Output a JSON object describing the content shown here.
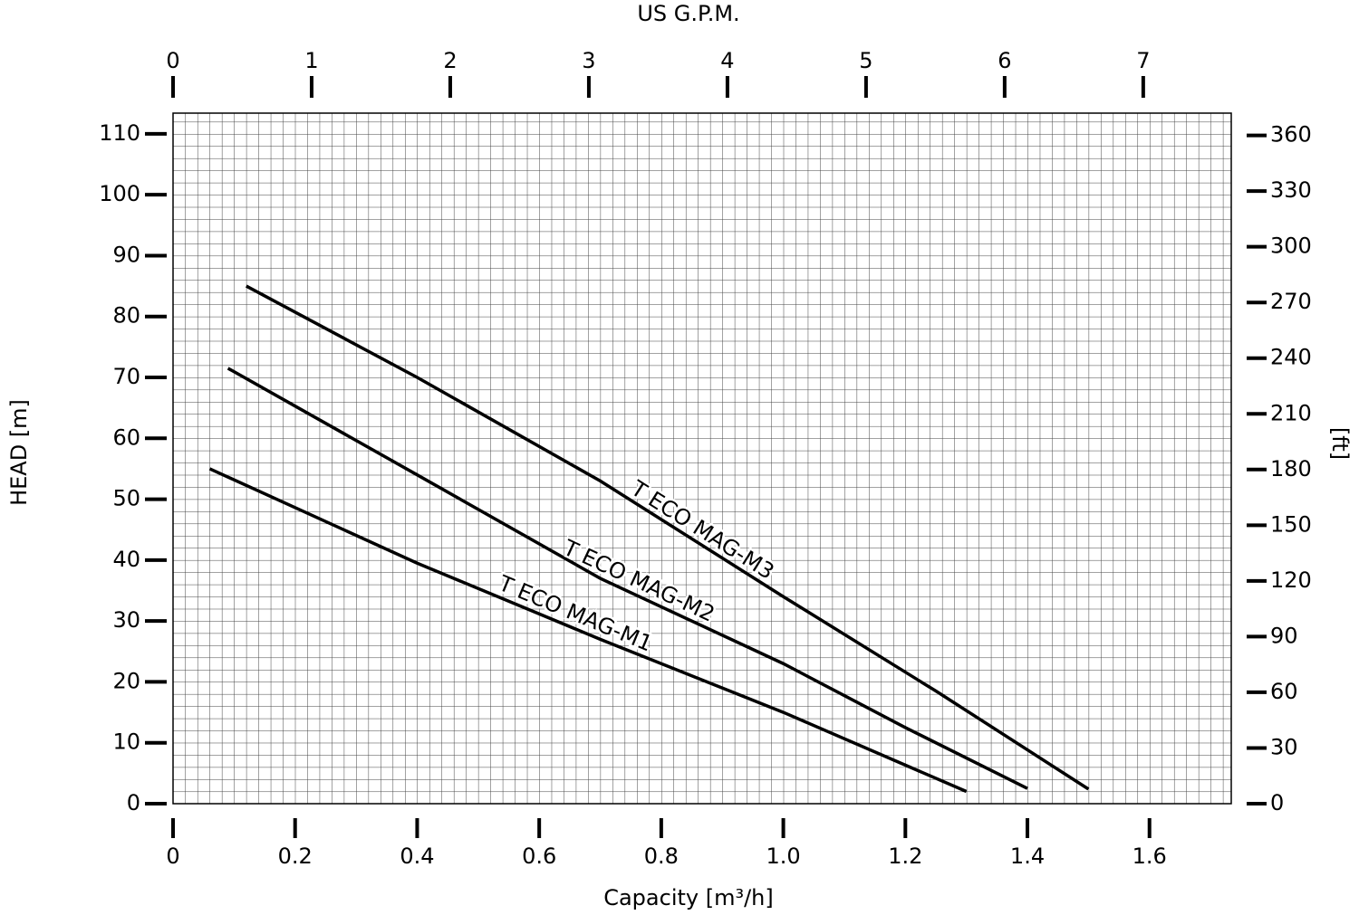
{
  "chart_data": {
    "type": "line",
    "title": "US G.P.M.",
    "x_label": "Capacity [m³/h]",
    "y_label": "HEAD [m]",
    "y2_label": "[ft]",
    "xlim": [
      0,
      1.734
    ],
    "xticks": [
      0,
      0.2,
      0.4,
      0.6,
      0.8,
      {
        "value": 1,
        "label": "1.0"
      },
      1.2,
      1.4,
      1.6
    ],
    "x2lim": [
      0,
      7.635
    ],
    "x2ticks": [
      0,
      1,
      2,
      3,
      4,
      5,
      6,
      7
    ],
    "ylim": [
      0,
      113.4
    ],
    "yticks": [
      0,
      10,
      20,
      30,
      40,
      50,
      60,
      70,
      80,
      90,
      100,
      110
    ],
    "y2lim": [
      0,
      372
    ],
    "y2ticks": [
      0,
      30,
      60,
      90,
      120,
      150,
      180,
      210,
      240,
      270,
      300,
      330,
      360
    ],
    "grid": true,
    "series": [
      {
        "name": "T ECO MAG-M1",
        "color": "#000000",
        "x": [
          0.06,
          0.4,
          0.7,
          1.0,
          1.3
        ],
        "values": [
          55,
          39.5,
          27,
          15,
          2
        ]
      },
      {
        "name": "T ECO MAG-M2",
        "color": "#000000",
        "x": [
          0.09,
          0.4,
          0.7,
          1.0,
          1.2,
          1.4
        ],
        "values": [
          71.5,
          54,
          37,
          23,
          12.5,
          2.5
        ]
      },
      {
        "name": "T ECO MAG-M3",
        "color": "#000000",
        "x": [
          0.12,
          0.4,
          0.7,
          1.0,
          1.25,
          1.5
        ],
        "values": [
          85,
          70,
          53,
          34,
          18.5,
          2.4
        ]
      }
    ]
  }
}
